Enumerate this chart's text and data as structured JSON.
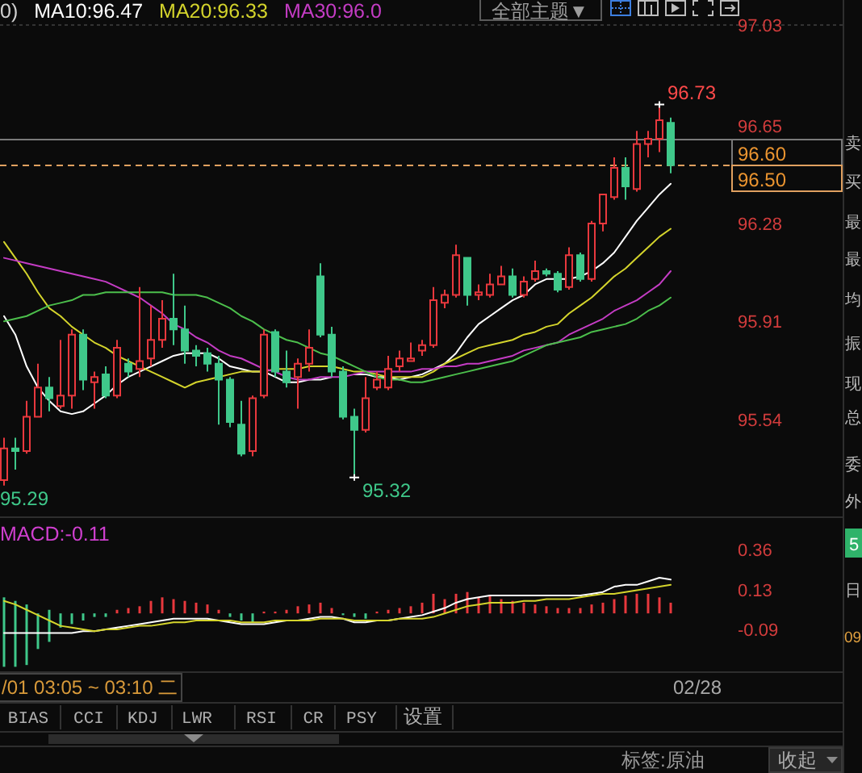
{
  "chart_data": [
    {
      "type": "candlestick",
      "categories": [
        null,
        null,
        null,
        null,
        null,
        null,
        null,
        null,
        null,
        null,
        null,
        null,
        null,
        null,
        null,
        null,
        null,
        null,
        null,
        null,
        null,
        null,
        null,
        null,
        null,
        null,
        null,
        null,
        null,
        null,
        null,
        null,
        null,
        null,
        null,
        null,
        null,
        null,
        null,
        null,
        null,
        null,
        null,
        null,
        null,
        null,
        null,
        null,
        null,
        null,
        null,
        null,
        null,
        null,
        null,
        null,
        null,
        null,
        null,
        null
      ],
      "ohlc": [
        [
          95.31,
          95.47,
          95.29,
          95.43
        ],
        [
          95.43,
          95.47,
          95.35,
          95.42
        ],
        [
          95.42,
          95.61,
          95.41,
          95.55
        ],
        [
          95.55,
          95.75,
          95.55,
          95.66
        ],
        [
          95.66,
          95.7,
          95.57,
          95.62
        ],
        [
          95.59,
          95.84,
          95.58,
          95.63
        ],
        [
          95.63,
          95.88,
          95.58,
          95.86
        ],
        [
          95.86,
          95.88,
          95.65,
          95.69
        ],
        [
          95.68,
          95.72,
          95.58,
          95.7
        ],
        [
          95.71,
          95.74,
          95.62,
          95.63
        ],
        [
          95.63,
          95.84,
          95.62,
          95.81
        ],
        [
          95.75,
          95.77,
          95.7,
          95.72
        ],
        [
          95.73,
          96.04,
          95.7,
          95.76
        ],
        [
          95.77,
          95.97,
          95.74,
          95.84
        ],
        [
          95.84,
          95.99,
          95.81,
          95.92
        ],
        [
          95.92,
          96.09,
          95.82,
          95.88
        ],
        [
          95.88,
          95.97,
          95.75,
          95.8
        ],
        [
          95.8,
          95.82,
          95.74,
          95.78
        ],
        [
          95.79,
          95.81,
          95.72,
          95.75
        ],
        [
          95.75,
          95.78,
          95.52,
          95.69
        ],
        [
          95.69,
          95.7,
          95.51,
          95.53
        ],
        [
          95.52,
          95.61,
          95.4,
          95.41
        ],
        [
          95.42,
          95.63,
          95.4,
          95.62
        ],
        [
          95.63,
          95.88,
          95.62,
          95.86
        ],
        [
          95.87,
          95.88,
          95.7,
          95.72
        ],
        [
          95.72,
          95.8,
          95.66,
          95.68
        ],
        [
          95.7,
          95.77,
          95.58,
          95.75
        ],
        [
          95.75,
          95.88,
          95.72,
          95.81
        ],
        [
          96.08,
          96.13,
          95.85,
          95.86
        ],
        [
          95.86,
          95.89,
          95.7,
          95.72
        ],
        [
          95.72,
          95.74,
          95.54,
          95.55
        ],
        [
          95.55,
          95.58,
          95.32,
          95.5
        ],
        [
          95.5,
          95.7,
          95.49,
          95.62
        ],
        [
          95.66,
          95.72,
          95.65,
          95.69
        ],
        [
          95.66,
          95.78,
          95.65,
          95.73
        ],
        [
          95.74,
          95.8,
          95.72,
          95.77
        ],
        [
          95.76,
          95.83,
          95.76,
          95.77
        ],
        [
          95.8,
          95.84,
          95.78,
          95.82
        ],
        [
          95.82,
          96.04,
          95.81,
          95.99
        ],
        [
          95.98,
          96.03,
          95.96,
          96.01
        ],
        [
          96.01,
          96.2,
          96.0,
          96.16
        ],
        [
          96.15,
          96.15,
          95.97,
          96.01
        ],
        [
          96.01,
          96.05,
          95.99,
          96.02
        ],
        [
          96.01,
          96.09,
          96.0,
          96.05
        ],
        [
          96.05,
          96.12,
          96.05,
          96.08
        ],
        [
          96.08,
          96.11,
          96.0,
          96.01
        ],
        [
          96.01,
          96.08,
          96.0,
          96.06
        ],
        [
          96.07,
          96.14,
          96.06,
          96.1
        ],
        [
          96.1,
          96.11,
          96.08,
          96.09
        ],
        [
          96.09,
          96.1,
          96.02,
          96.03
        ],
        [
          96.04,
          96.19,
          96.03,
          96.16
        ],
        [
          96.16,
          96.17,
          96.06,
          96.07
        ],
        [
          96.07,
          96.29,
          96.06,
          96.28
        ],
        [
          96.28,
          96.39,
          96.25,
          96.39
        ],
        [
          96.38,
          96.53,
          96.37,
          96.49
        ],
        [
          96.49,
          96.53,
          96.37,
          96.42
        ],
        [
          96.41,
          96.63,
          96.4,
          96.58
        ],
        [
          96.58,
          96.63,
          96.53,
          96.6
        ],
        [
          96.6,
          96.73,
          96.55,
          96.67
        ],
        [
          96.66,
          96.68,
          96.47,
          96.5
        ]
      ],
      "colors": [
        "#e8383d",
        "#3fc88a",
        "#e8383d",
        "#e8383d",
        "#3fc88a",
        "#e8383d",
        "#e8383d",
        "#3fc88a",
        "#e8383d",
        "#3fc88a",
        "#e8383d",
        "#3fc88a",
        "#e8383d",
        "#e8383d",
        "#e8383d",
        "#3fc88a",
        "#3fc88a",
        "#3fc88a",
        "#3fc88a",
        "#3fc88a",
        "#3fc88a",
        "#3fc88a",
        "#e8383d",
        "#e8383d",
        "#3fc88a",
        "#3fc88a",
        "#e8383d",
        "#e8383d",
        "#3fc88a",
        "#3fc88a",
        "#3fc88a",
        "#3fc88a",
        "#e8383d",
        "#e8383d",
        "#e8383d",
        "#e8383d",
        "#e8383d",
        "#e8383d",
        "#e8383d",
        "#e8383d",
        "#e8383d",
        "#3fc88a",
        "#e8383d",
        "#e8383d",
        "#e8383d",
        "#3fc88a",
        "#e8383d",
        "#e8383d",
        "#3fc88a",
        "#3fc88a",
        "#e8383d",
        "#3fc88a",
        "#e8383d",
        "#e8383d",
        "#e8383d",
        "#3fc88a",
        "#e8383d",
        "#e8383d",
        "#e8383d",
        "#3fc88a"
      ],
      "series": [
        {
          "type": "line",
          "name": "MA10:96.47",
          "color": "#ffffff",
          "values": [
            95.93,
            95.86,
            95.74,
            95.66,
            95.61,
            95.57,
            95.56,
            95.57,
            95.6,
            95.63,
            95.67,
            95.7,
            95.72,
            95.74,
            95.76,
            95.78,
            95.79,
            95.79,
            95.79,
            95.77,
            95.74,
            95.73,
            95.72,
            95.72,
            95.7,
            95.68,
            95.68,
            95.69,
            95.69,
            95.7,
            null,
            95.71,
            95.71,
            95.7,
            95.7,
            95.69,
            95.7,
            95.71,
            95.73,
            95.75,
            95.79,
            95.85,
            95.9,
            95.93,
            95.96,
            95.99,
            96.01,
            96.05,
            96.07,
            96.07,
            96.07,
            96.08,
            96.1,
            96.13,
            96.17,
            96.23,
            96.29,
            96.34,
            96.39,
            96.43
          ]
        },
        {
          "type": "line",
          "name": "MA20:96.33",
          "color": "#d4d42c",
          "values": [
            96.21,
            96.15,
            96.09,
            96.02,
            95.96,
            95.93,
            95.89,
            95.86,
            95.83,
            95.81,
            95.78,
            95.76,
            95.74,
            95.72,
            95.7,
            95.68,
            95.66,
            95.68,
            95.69,
            95.7,
            95.71,
            95.72,
            95.72,
            95.72,
            95.73,
            95.73,
            95.73,
            95.74,
            95.74,
            95.74,
            95.73,
            95.72,
            95.72,
            95.71,
            95.7,
            95.7,
            95.7,
            95.7,
            95.72,
            95.75,
            95.77,
            95.79,
            95.81,
            95.82,
            95.83,
            95.84,
            95.86,
            95.87,
            95.89,
            95.9,
            95.94,
            95.97,
            96.0,
            96.04,
            96.08,
            96.11,
            96.15,
            96.19,
            96.23,
            96.26
          ]
        },
        {
          "type": "line",
          "name": "MA30:96.0",
          "color": "#c43cc4",
          "values": [
            96.15,
            96.14,
            96.13,
            96.12,
            96.11,
            96.1,
            96.09,
            96.08,
            96.07,
            96.06,
            96.04,
            96.02,
            96.0,
            95.97,
            95.94,
            95.9,
            95.88,
            95.85,
            95.83,
            95.8,
            95.78,
            95.77,
            95.75,
            95.73,
            95.72,
            95.7,
            95.69,
            95.69,
            95.7,
            95.7,
            95.7,
            95.71,
            95.72,
            95.72,
            95.72,
            95.72,
            95.72,
            95.73,
            95.73,
            95.74,
            95.74,
            95.75,
            95.75,
            95.76,
            95.77,
            95.78,
            95.8,
            95.81,
            95.82,
            95.83,
            95.86,
            95.88,
            95.9,
            95.92,
            95.95,
            95.97,
            95.99,
            96.02,
            96.05,
            96.1
          ]
        },
        {
          "type": "line",
          "color": "#4cbf4c",
          "values": [
            95.91,
            95.92,
            95.93,
            95.95,
            95.97,
            95.98,
            95.99,
            96.01,
            96.01,
            96.02,
            96.02,
            96.02,
            96.02,
            96.02,
            96.02,
            96.01,
            96.01,
            96.01,
            96.0,
            95.98,
            95.96,
            95.93,
            95.91,
            95.88,
            95.86,
            95.84,
            95.83,
            95.81,
            95.79,
            95.78,
            95.76,
            95.74,
            95.72,
            95.7,
            95.69,
            95.69,
            95.68,
            95.68,
            95.69,
            95.7,
            95.71,
            95.72,
            95.73,
            95.74,
            95.75,
            95.76,
            95.78,
            95.8,
            95.82,
            95.83,
            95.84,
            95.85,
            95.87,
            95.88,
            95.89,
            95.9,
            95.92,
            95.95,
            95.97,
            96.0
          ]
        }
      ],
      "ylim": [
        95.17,
        97.03
      ],
      "yticks": [
        97.03,
        96.65,
        96.28,
        95.91,
        95.54
      ],
      "tick_labels": "y",
      "legend": "top left",
      "ref_lines": [
        {
          "axis": "y",
          "value": 96.6,
          "color": "#7a7a7a"
        },
        {
          "axis": "y",
          "value": 96.5,
          "color": "#e0a060",
          "line_style": "dashed"
        }
      ],
      "annotations": [
        "0)",
        "96.73",
        "95.32",
        "95.29",
        "96.60",
        "96.50"
      ]
    },
    {
      "type": "bar",
      "title": "MACD:-0.11",
      "categories": [
        null,
        null,
        null,
        null,
        null,
        null,
        null,
        null,
        null,
        null,
        null,
        null,
        null,
        null,
        null,
        null,
        null,
        null,
        null,
        null,
        null,
        null,
        null,
        null,
        null,
        null,
        null,
        null,
        null,
        null,
        null,
        null,
        null,
        null,
        null,
        null,
        null,
        null,
        null,
        null,
        null,
        null,
        null,
        null,
        null,
        null,
        null,
        null,
        null,
        null,
        null,
        null,
        null,
        null,
        null,
        null,
        null,
        null,
        null,
        null
      ],
      "series": [
        {
          "colors": [
            "#3fc88a",
            "#3fc88a",
            "#3fc88a",
            "#3fc88a",
            "#3fc88a",
            "#3fc88a",
            "#3fc88a",
            "#3fc88a",
            "#3fc88a",
            "#3fc88a",
            "#e8383d",
            "#e8383d",
            "#e8383d",
            "#e8383d",
            "#e8383d",
            "#e8383d",
            "#e8383d",
            "#e8383d",
            "#e8383d",
            "#e8383d",
            "#3fc88a",
            "#3fc88a",
            "#3fc88a",
            "#e8383d",
            "#e8383d",
            "#e8383d",
            "#e8383d",
            "#e8383d",
            "#e8383d",
            "#e8383d",
            "#3fc88a",
            "#3fc88a",
            "#3fc88a",
            "#e8383d",
            "#e8383d",
            "#e8383d",
            "#e8383d",
            "#e8383d",
            "#e8383d",
            "#e8383d",
            "#e8383d",
            "#e8383d",
            "#e8383d",
            "#e8383d",
            "#e8383d",
            "#e8383d",
            "#e8383d",
            "#e8383d",
            "#e8383d",
            "#e8383d",
            "#e8383d",
            "#e8383d",
            "#e8383d",
            "#e8383d",
            "#e8383d",
            "#e8383d",
            "#e8383d",
            "#e8383d",
            "#e8383d",
            "#e8383d"
          ],
          "base": [
            0.09,
            0.07,
            0.05,
            0,
            0.02,
            0,
            0,
            0,
            0,
            0,
            0,
            0,
            0,
            0,
            0,
            0,
            0,
            0,
            0,
            0,
            0,
            0,
            0,
            0,
            0,
            0,
            0,
            0,
            0,
            0,
            0,
            0,
            0,
            0,
            0,
            0,
            0,
            0,
            0,
            0,
            0,
            0,
            0,
            0,
            0,
            0,
            0,
            0,
            0,
            0,
            0,
            0,
            0,
            0,
            0,
            0,
            0,
            0,
            0,
            0
          ],
          "values": [
            -0.39,
            -0.37,
            -0.34,
            -0.2,
            -0.18,
            -0.08,
            -0.06,
            -0.04,
            -0.02,
            -0.02,
            0.02,
            0.03,
            0.04,
            0.07,
            0.09,
            0.08,
            0.07,
            0.06,
            0.05,
            0.02,
            -0.02,
            -0.04,
            -0.05,
            0.01,
            0.01,
            0.02,
            0.04,
            0.05,
            0.06,
            0.03,
            -0.01,
            -0.02,
            -0.03,
            0.01,
            0.02,
            0.03,
            0.04,
            0.06,
            0.11,
            0.08,
            0.11,
            0.12,
            0.09,
            0.1,
            0.08,
            0.07,
            0.06,
            0.05,
            0.04,
            0.03,
            0.03,
            0.03,
            0.05,
            0.06,
            0.08,
            0.1,
            0.11,
            0.11,
            0.09,
            0.06
          ]
        },
        {
          "type": "line",
          "color": "#ffffff",
          "values": [
            -0.11,
            -0.11,
            -0.11,
            -0.11,
            -0.11,
            -0.11,
            -0.11,
            -0.1,
            -0.1,
            -0.09,
            -0.08,
            -0.07,
            -0.06,
            -0.05,
            -0.04,
            -0.03,
            -0.03,
            -0.03,
            -0.03,
            -0.04,
            -0.05,
            -0.06,
            -0.06,
            -0.06,
            -0.05,
            -0.04,
            -0.04,
            -0.03,
            -0.02,
            -0.02,
            -0.03,
            -0.05,
            -0.05,
            -0.04,
            -0.04,
            -0.03,
            -0.02,
            -0.01,
            0.01,
            0.03,
            0.06,
            0.08,
            0.09,
            0.1,
            0.1,
            0.1,
            0.1,
            0.1,
            0.1,
            0.1,
            0.1,
            0.1,
            0.11,
            0.12,
            0.15,
            0.16,
            0.16,
            0.18,
            0.2,
            0.19
          ]
        },
        {
          "type": "line",
          "color": "#d4d42c",
          "values": [
            0.07,
            0.05,
            0.02,
            -0.01,
            -0.04,
            -0.07,
            -0.08,
            -0.09,
            -0.1,
            -0.09,
            -0.09,
            -0.08,
            -0.07,
            -0.07,
            -0.06,
            -0.05,
            -0.05,
            -0.04,
            -0.04,
            -0.04,
            -0.04,
            -0.05,
            -0.05,
            -0.05,
            -0.04,
            -0.04,
            -0.04,
            -0.04,
            -0.03,
            -0.03,
            -0.03,
            -0.04,
            -0.04,
            -0.04,
            -0.04,
            -0.03,
            -0.03,
            -0.03,
            -0.02,
            0.0,
            0.02,
            0.04,
            0.05,
            0.06,
            0.06,
            0.06,
            0.07,
            0.07,
            0.08,
            0.08,
            0.08,
            0.09,
            0.1,
            0.11,
            0.11,
            0.12,
            0.13,
            0.14,
            0.15,
            0.16
          ]
        }
      ],
      "ylim": [
        -0.33,
        0.54
      ],
      "yticks": [
        0.36,
        0.13,
        -0.09
      ],
      "tick_labels": "y",
      "annotations": [
        "/01 03:05 ~ 03:10 二",
        "02/28"
      ]
    },
    {
      "type": "other",
      "annotations": [
        "全部主题▼",
        "BIAS",
        "CCI",
        "KDJ",
        "LWR",
        "RSI",
        "CR",
        "PSY",
        "设置",
        "标签:原油",
        "收起",
        "卖",
        "买",
        "最",
        "最",
        "均",
        "振",
        "现",
        "总",
        "委",
        "外",
        "5",
        "日",
        "09"
      ]
    }
  ]
}
